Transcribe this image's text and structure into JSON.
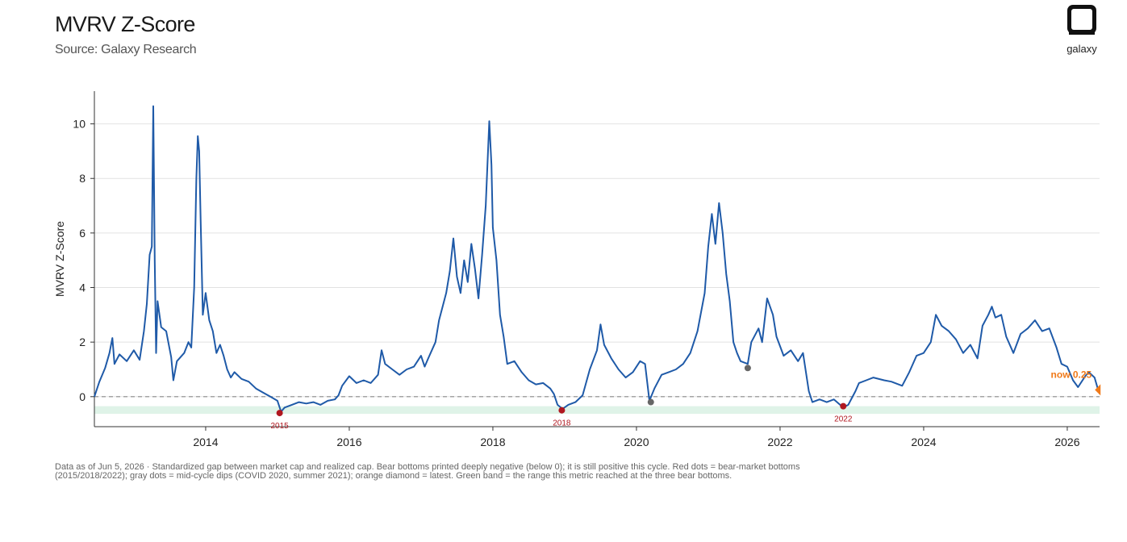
{
  "header": {
    "title": "MVRV Z-Score",
    "subtitle": "Source: Galaxy Research",
    "logo_text": "galaxy"
  },
  "chart_data": {
    "type": "line",
    "ylabel": "MVRV Z-Score",
    "xlabel": "",
    "xlim": [
      2012.45,
      2026.45
    ],
    "ylim": [
      -1.1,
      11.2
    ],
    "x_ticks": [
      "2014",
      "2016",
      "2018",
      "2020",
      "2022",
      "2024",
      "2026"
    ],
    "y_ticks": [
      "0",
      "2",
      "4",
      "6",
      "8",
      "10"
    ],
    "grid": "horizontal",
    "reference_line": 0,
    "band": [
      -0.63,
      -0.35
    ],
    "series": [
      {
        "color": "#1f5aa8",
        "points": [
          [
            2012.45,
            0.0
          ],
          [
            2012.52,
            0.55
          ],
          [
            2012.6,
            1.05
          ],
          [
            2012.66,
            1.6
          ],
          [
            2012.7,
            2.15
          ],
          [
            2012.73,
            1.2
          ],
          [
            2012.8,
            1.55
          ],
          [
            2012.9,
            1.3
          ],
          [
            2013.0,
            1.7
          ],
          [
            2013.08,
            1.35
          ],
          [
            2013.14,
            2.4
          ],
          [
            2013.18,
            3.4
          ],
          [
            2013.22,
            5.2
          ],
          [
            2013.25,
            5.5
          ],
          [
            2013.27,
            10.65
          ],
          [
            2013.29,
            5.0
          ],
          [
            2013.31,
            1.6
          ],
          [
            2013.33,
            3.5
          ],
          [
            2013.38,
            2.55
          ],
          [
            2013.45,
            2.4
          ],
          [
            2013.52,
            1.45
          ],
          [
            2013.55,
            0.6
          ],
          [
            2013.6,
            1.3
          ],
          [
            2013.7,
            1.6
          ],
          [
            2013.76,
            2.0
          ],
          [
            2013.8,
            1.8
          ],
          [
            2013.84,
            4.0
          ],
          [
            2013.87,
            8.0
          ],
          [
            2013.89,
            9.55
          ],
          [
            2013.91,
            9.0
          ],
          [
            2013.93,
            6.5
          ],
          [
            2013.96,
            3.0
          ],
          [
            2014.0,
            3.8
          ],
          [
            2014.05,
            2.8
          ],
          [
            2014.1,
            2.4
          ],
          [
            2014.15,
            1.6
          ],
          [
            2014.2,
            1.9
          ],
          [
            2014.25,
            1.5
          ],
          [
            2014.3,
            1.0
          ],
          [
            2014.35,
            0.7
          ],
          [
            2014.4,
            0.9
          ],
          [
            2014.5,
            0.65
          ],
          [
            2014.6,
            0.55
          ],
          [
            2014.7,
            0.3
          ],
          [
            2014.8,
            0.15
          ],
          [
            2014.9,
            0.0
          ],
          [
            2015.0,
            -0.15
          ],
          [
            2015.05,
            -0.55
          ],
          [
            2015.1,
            -0.4
          ],
          [
            2015.2,
            -0.3
          ],
          [
            2015.3,
            -0.2
          ],
          [
            2015.4,
            -0.25
          ],
          [
            2015.5,
            -0.2
          ],
          [
            2015.6,
            -0.3
          ],
          [
            2015.7,
            -0.15
          ],
          [
            2015.8,
            -0.1
          ],
          [
            2015.85,
            0.05
          ],
          [
            2015.9,
            0.4
          ],
          [
            2016.0,
            0.75
          ],
          [
            2016.1,
            0.5
          ],
          [
            2016.2,
            0.6
          ],
          [
            2016.3,
            0.5
          ],
          [
            2016.4,
            0.8
          ],
          [
            2016.45,
            1.7
          ],
          [
            2016.5,
            1.2
          ],
          [
            2016.6,
            1.0
          ],
          [
            2016.7,
            0.8
          ],
          [
            2016.8,
            1.0
          ],
          [
            2016.9,
            1.1
          ],
          [
            2017.0,
            1.5
          ],
          [
            2017.05,
            1.1
          ],
          [
            2017.1,
            1.4
          ],
          [
            2017.2,
            2.0
          ],
          [
            2017.25,
            2.8
          ],
          [
            2017.35,
            3.8
          ],
          [
            2017.4,
            4.6
          ],
          [
            2017.45,
            5.8
          ],
          [
            2017.5,
            4.4
          ],
          [
            2017.55,
            3.8
          ],
          [
            2017.6,
            5.0
          ],
          [
            2017.65,
            4.2
          ],
          [
            2017.7,
            5.6
          ],
          [
            2017.75,
            4.7
          ],
          [
            2017.8,
            3.6
          ],
          [
            2017.85,
            5.2
          ],
          [
            2017.9,
            7.0
          ],
          [
            2017.95,
            10.1
          ],
          [
            2017.98,
            8.5
          ],
          [
            2018.0,
            6.2
          ],
          [
            2018.05,
            5.0
          ],
          [
            2018.1,
            3.0
          ],
          [
            2018.15,
            2.2
          ],
          [
            2018.2,
            1.2
          ],
          [
            2018.3,
            1.3
          ],
          [
            2018.4,
            0.9
          ],
          [
            2018.5,
            0.6
          ],
          [
            2018.6,
            0.45
          ],
          [
            2018.7,
            0.5
          ],
          [
            2018.8,
            0.3
          ],
          [
            2018.85,
            0.1
          ],
          [
            2018.9,
            -0.3
          ],
          [
            2018.97,
            -0.45
          ],
          [
            2019.05,
            -0.3
          ],
          [
            2019.15,
            -0.2
          ],
          [
            2019.25,
            0.05
          ],
          [
            2019.35,
            1.0
          ],
          [
            2019.45,
            1.7
          ],
          [
            2019.5,
            2.65
          ],
          [
            2019.55,
            1.9
          ],
          [
            2019.65,
            1.4
          ],
          [
            2019.75,
            1.0
          ],
          [
            2019.85,
            0.7
          ],
          [
            2019.95,
            0.9
          ],
          [
            2020.05,
            1.3
          ],
          [
            2020.12,
            1.2
          ],
          [
            2020.18,
            -0.15
          ],
          [
            2020.25,
            0.3
          ],
          [
            2020.35,
            0.8
          ],
          [
            2020.45,
            0.9
          ],
          [
            2020.55,
            1.0
          ],
          [
            2020.65,
            1.2
          ],
          [
            2020.75,
            1.6
          ],
          [
            2020.85,
            2.4
          ],
          [
            2020.95,
            3.8
          ],
          [
            2021.0,
            5.5
          ],
          [
            2021.05,
            6.7
          ],
          [
            2021.1,
            5.6
          ],
          [
            2021.15,
            7.1
          ],
          [
            2021.2,
            6.0
          ],
          [
            2021.25,
            4.5
          ],
          [
            2021.3,
            3.5
          ],
          [
            2021.35,
            2.0
          ],
          [
            2021.4,
            1.6
          ],
          [
            2021.45,
            1.3
          ],
          [
            2021.55,
            1.2
          ],
          [
            2021.6,
            2.0
          ],
          [
            2021.7,
            2.5
          ],
          [
            2021.75,
            2.0
          ],
          [
            2021.82,
            3.6
          ],
          [
            2021.9,
            3.0
          ],
          [
            2021.95,
            2.2
          ],
          [
            2022.05,
            1.5
          ],
          [
            2022.15,
            1.7
          ],
          [
            2022.25,
            1.3
          ],
          [
            2022.32,
            1.6
          ],
          [
            2022.4,
            0.2
          ],
          [
            2022.45,
            -0.2
          ],
          [
            2022.55,
            -0.1
          ],
          [
            2022.65,
            -0.2
          ],
          [
            2022.75,
            -0.1
          ],
          [
            2022.88,
            -0.4
          ],
          [
            2022.95,
            -0.3
          ],
          [
            2023.05,
            0.2
          ],
          [
            2023.1,
            0.5
          ],
          [
            2023.2,
            0.6
          ],
          [
            2023.3,
            0.7
          ],
          [
            2023.45,
            0.6
          ],
          [
            2023.55,
            0.55
          ],
          [
            2023.7,
            0.4
          ],
          [
            2023.8,
            0.9
          ],
          [
            2023.9,
            1.5
          ],
          [
            2024.0,
            1.6
          ],
          [
            2024.1,
            2.0
          ],
          [
            2024.17,
            3.0
          ],
          [
            2024.25,
            2.6
          ],
          [
            2024.35,
            2.4
          ],
          [
            2024.45,
            2.1
          ],
          [
            2024.55,
            1.6
          ],
          [
            2024.65,
            1.9
          ],
          [
            2024.75,
            1.4
          ],
          [
            2024.82,
            2.6
          ],
          [
            2024.9,
            3.0
          ],
          [
            2024.95,
            3.3
          ],
          [
            2025.0,
            2.9
          ],
          [
            2025.08,
            3.0
          ],
          [
            2025.15,
            2.2
          ],
          [
            2025.25,
            1.6
          ],
          [
            2025.35,
            2.3
          ],
          [
            2025.45,
            2.5
          ],
          [
            2025.55,
            2.8
          ],
          [
            2025.65,
            2.4
          ],
          [
            2025.75,
            2.5
          ],
          [
            2025.85,
            1.8
          ],
          [
            2025.92,
            1.2
          ],
          [
            2026.0,
            1.1
          ],
          [
            2026.08,
            0.6
          ],
          [
            2026.15,
            0.35
          ],
          [
            2026.25,
            0.75
          ],
          [
            2026.3,
            0.9
          ],
          [
            2026.38,
            0.7
          ],
          [
            2026.43,
            0.25
          ]
        ]
      }
    ],
    "markers": [
      {
        "kind": "bear-bottom",
        "x": 2015.03,
        "y": -0.6,
        "label": "2015",
        "color": "#b0171f"
      },
      {
        "kind": "bear-bottom",
        "x": 2018.96,
        "y": -0.5,
        "label": "2018",
        "color": "#b0171f"
      },
      {
        "kind": "bear-bottom",
        "x": 2022.88,
        "y": -0.35,
        "label": "2022",
        "color": "#b0171f"
      },
      {
        "kind": "mid-cycle-dip",
        "x": 2020.2,
        "y": -0.2,
        "label": "",
        "color": "#666666"
      },
      {
        "kind": "mid-cycle-dip",
        "x": 2021.55,
        "y": 1.05,
        "label": "",
        "color": "#666666"
      },
      {
        "kind": "latest",
        "x": 2026.43,
        "y": 0.25,
        "label": "now 0.25",
        "color": "#f07a1a"
      }
    ]
  },
  "footnote": "Data as of Jun 5, 2026 · Standardized gap between market cap and realized cap. Bear bottoms printed deeply negative (below 0); it is still positive this cycle. Red dots = bear-market bottoms (2015/2018/2022); gray dots = mid-cycle dips (COVID 2020, summer 2021); orange diamond = latest. Green band = the range this metric reached at the three bear bottoms.",
  "colors": {
    "line": "#1f5aa8",
    "band": "#dff3e8",
    "latest": "#f07a1a",
    "bear": "#b0171f",
    "dip": "#666666"
  }
}
